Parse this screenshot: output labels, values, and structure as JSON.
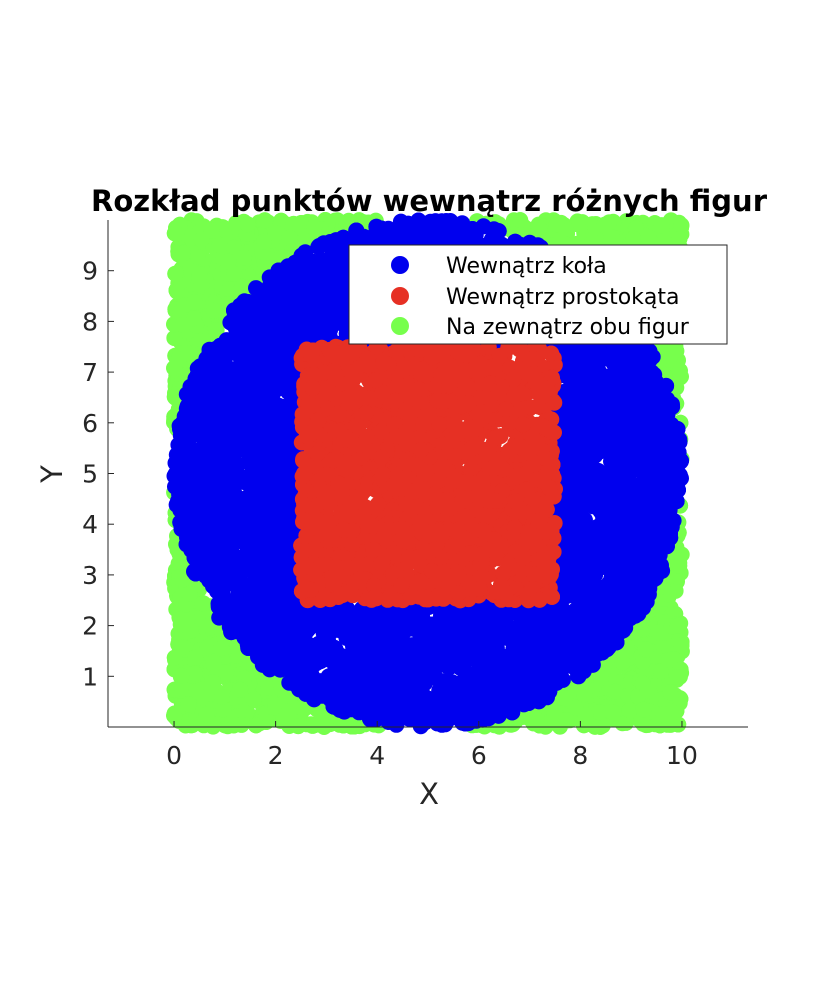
{
  "chart_data": {
    "type": "scatter",
    "title": "Rozkład punktów wewnątrz różnych figur",
    "xlabel": "X",
    "ylabel": "Y",
    "xlim": [
      -1.3,
      11.3
    ],
    "ylim": [
      0,
      10
    ],
    "xticks": [
      0,
      2,
      4,
      6,
      8,
      10
    ],
    "yticks": [
      1,
      2,
      3,
      4,
      5,
      6,
      7,
      8,
      9
    ],
    "grid": false,
    "legend_position": "top-right",
    "sampling": {
      "domain_x": [
        0,
        10
      ],
      "domain_y": [
        0,
        10
      ],
      "circle": {
        "center": [
          5,
          5
        ],
        "radius": 5
      },
      "rectangle": {
        "x": [
          2.5,
          7.5
        ],
        "y": [
          2.5,
          7.5
        ]
      },
      "approx_points": 12000
    },
    "series": [
      {
        "name": "Wewnątrz koła",
        "color": "#0000ee",
        "region": "circle"
      },
      {
        "name": "Wewnątrz prostokąta",
        "color": "#e63024",
        "region": "rectangle"
      },
      {
        "name": "Na zewnątrz obu figur",
        "color": "#77ff4c",
        "region": "outside"
      }
    ]
  }
}
